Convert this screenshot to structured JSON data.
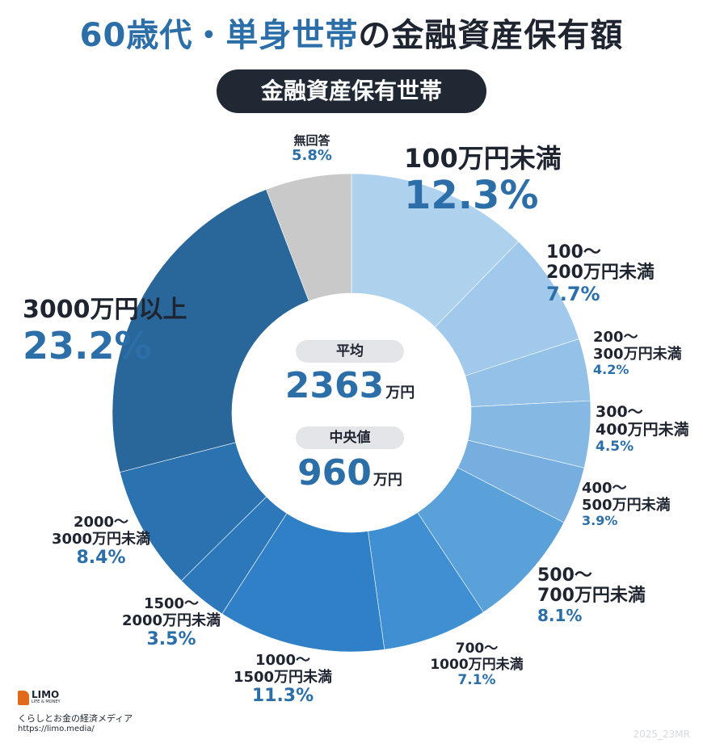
{
  "title_part1": "60歳代・単身世帯",
  "title_part2": "の金融資産保有額",
  "subtitle": "金融資産保有世帯",
  "center": {
    "mean_label": "平均",
    "mean_value": "2363",
    "mean_unit": "万円",
    "median_label": "中央値",
    "median_value": "960",
    "median_unit": "万円"
  },
  "chart_data": {
    "type": "pie",
    "donut": true,
    "start_angle_deg": 0,
    "direction": "clockwise",
    "categories": [
      "100万円未満",
      "100〜\n200万円未満",
      "200〜\n300万円未満",
      "300〜\n400万円未満",
      "400〜\n500万円未満",
      "500〜\n700万円未満",
      "700〜\n1000万円未満",
      "1000〜\n1500万円未満",
      "1500〜\n2000万円未満",
      "2000〜\n3000万円未満",
      "3000万円以上",
      "無回答"
    ],
    "values": [
      12.3,
      7.7,
      4.2,
      4.5,
      3.9,
      8.1,
      7.1,
      11.3,
      3.5,
      8.4,
      23.2,
      5.8
    ],
    "value_labels": [
      "12.3%",
      "7.7%",
      "4.2%",
      "4.5%",
      "3.9%",
      "8.1%",
      "7.1%",
      "11.3%",
      "3.5%",
      "8.4%",
      "23.2%",
      "5.8%"
    ],
    "colors": [
      "#aed2ee",
      "#a0c9eb",
      "#93c1e8",
      "#85b9e4",
      "#76afdf",
      "#5aa0d9",
      "#3f8fd2",
      "#2f80c6",
      "#2c78bb",
      "#2b72b0",
      "#296699",
      "#c9c9c9"
    ]
  },
  "logo": {
    "name": "LIMO",
    "sub": "LIFE & MONEY"
  },
  "footer": {
    "tagline": "くらしとお金の経済メディア",
    "url": "https://limo.media/",
    "code": "2025_23MR"
  }
}
